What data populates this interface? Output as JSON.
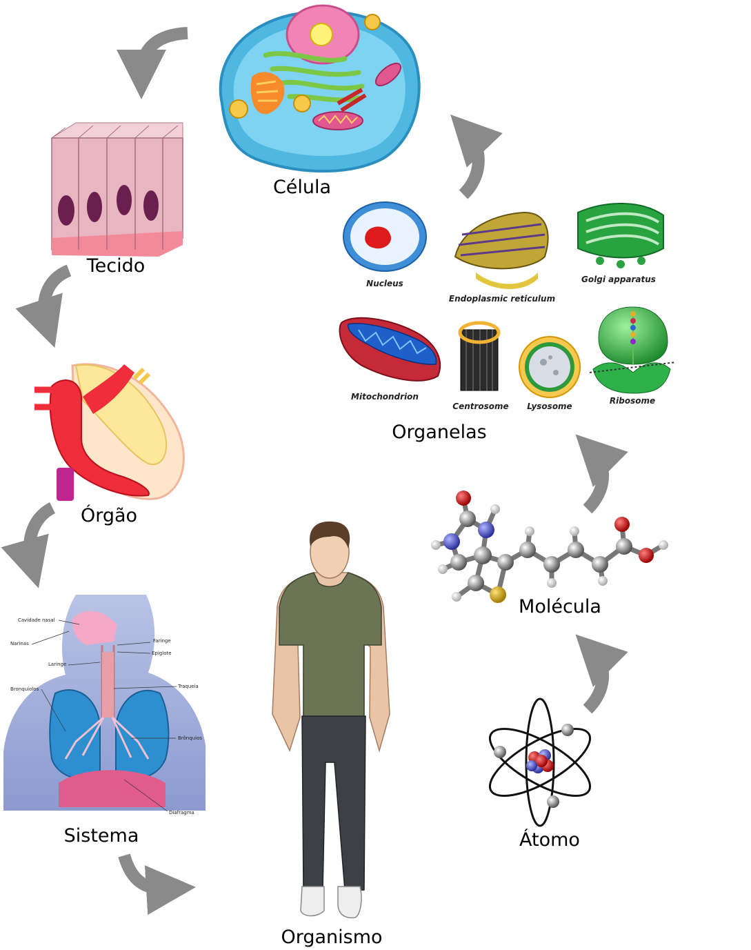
{
  "levels": {
    "celula": "Célula",
    "tecido": "Tecido",
    "orgao": "Órgão",
    "sistema": "Sistema",
    "organismo": "Organismo",
    "atomo": "Átomo",
    "molecula": "Molécula",
    "organelas": "Organelas"
  },
  "organelles": {
    "nucleus": "Nucleus",
    "er": "Endoplasmic reticulum",
    "golgi": "Golgi apparatus",
    "mitochondrion": "Mitochondrion",
    "centrosome": "Centrosome",
    "lysosome": "Lysosome",
    "ribosome": "Ribosome"
  },
  "respiratory_labels": {
    "cavidade_nasal": "Cavidade nasal",
    "narinas": "Narinas",
    "faringe": "Faringe",
    "epiglote": "Epiglote",
    "laringe": "Laringe",
    "traqueia": "Traqueia",
    "bronquiolos": "Bronquíolos",
    "bronquios": "Brônquios",
    "diafragma": "Diafragma"
  },
  "colors": {
    "arrow": "#8a8a8a",
    "cell_body": "#4fb8e0",
    "tissue": "#e8b6c0",
    "heart_red": "#ef2d3b",
    "lung": "#2e8fd0"
  }
}
